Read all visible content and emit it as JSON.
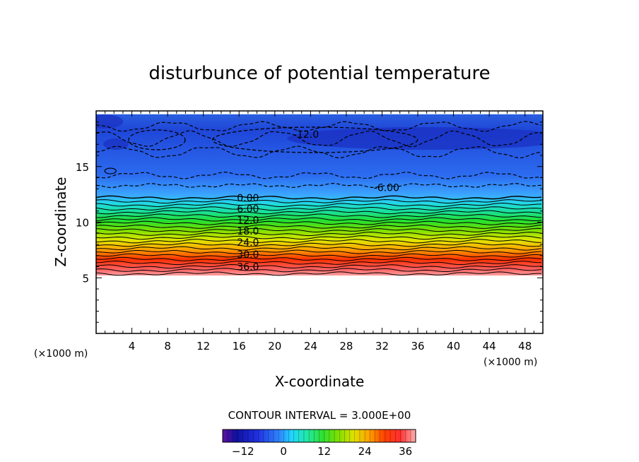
{
  "chart_data": {
    "type": "contour",
    "title": "disturbunce of potential temperature",
    "xlabel": "X-coordinate",
    "ylabel": "Z-coordinate",
    "x_unit": "(×1000 m)",
    "y_unit": "(×1000 m)",
    "xlim": [
      0,
      50
    ],
    "ylim": [
      0,
      20
    ],
    "x_ticks": [
      4,
      8,
      12,
      16,
      20,
      24,
      28,
      32,
      36,
      40,
      44,
      48
    ],
    "y_ticks": [
      5,
      10,
      15
    ],
    "contour_interval_text": "CONTOUR INTERVAL = 3.000E+00",
    "contour_interval": 3.0,
    "field_top_z": 19.7,
    "field_bottom_z": 5.2,
    "contour_labels": [
      {
        "text": "-12.0",
        "x": 23.5,
        "z": 17.9
      },
      {
        "text": "-6.00",
        "x": 32.5,
        "z": 13.1
      },
      {
        "text": "0.00",
        "x": 17.0,
        "z": 12.2
      },
      {
        "text": "6.00",
        "x": 17.0,
        "z": 11.2
      },
      {
        "text": "12.0",
        "x": 17.0,
        "z": 10.2
      },
      {
        "text": "18.0",
        "x": 17.0,
        "z": 9.2
      },
      {
        "text": "24.0",
        "x": 17.0,
        "z": 8.2
      },
      {
        "text": "30.0",
        "x": 17.0,
        "z": 7.1
      },
      {
        "text": "36.0",
        "x": 17.0,
        "z": 6.0
      }
    ],
    "colorbar": {
      "min": -18,
      "max": 39,
      "ticks": [
        -12,
        0,
        12,
        24,
        36
      ],
      "colormap": "rainbow"
    },
    "grid": false,
    "legend": "none"
  }
}
